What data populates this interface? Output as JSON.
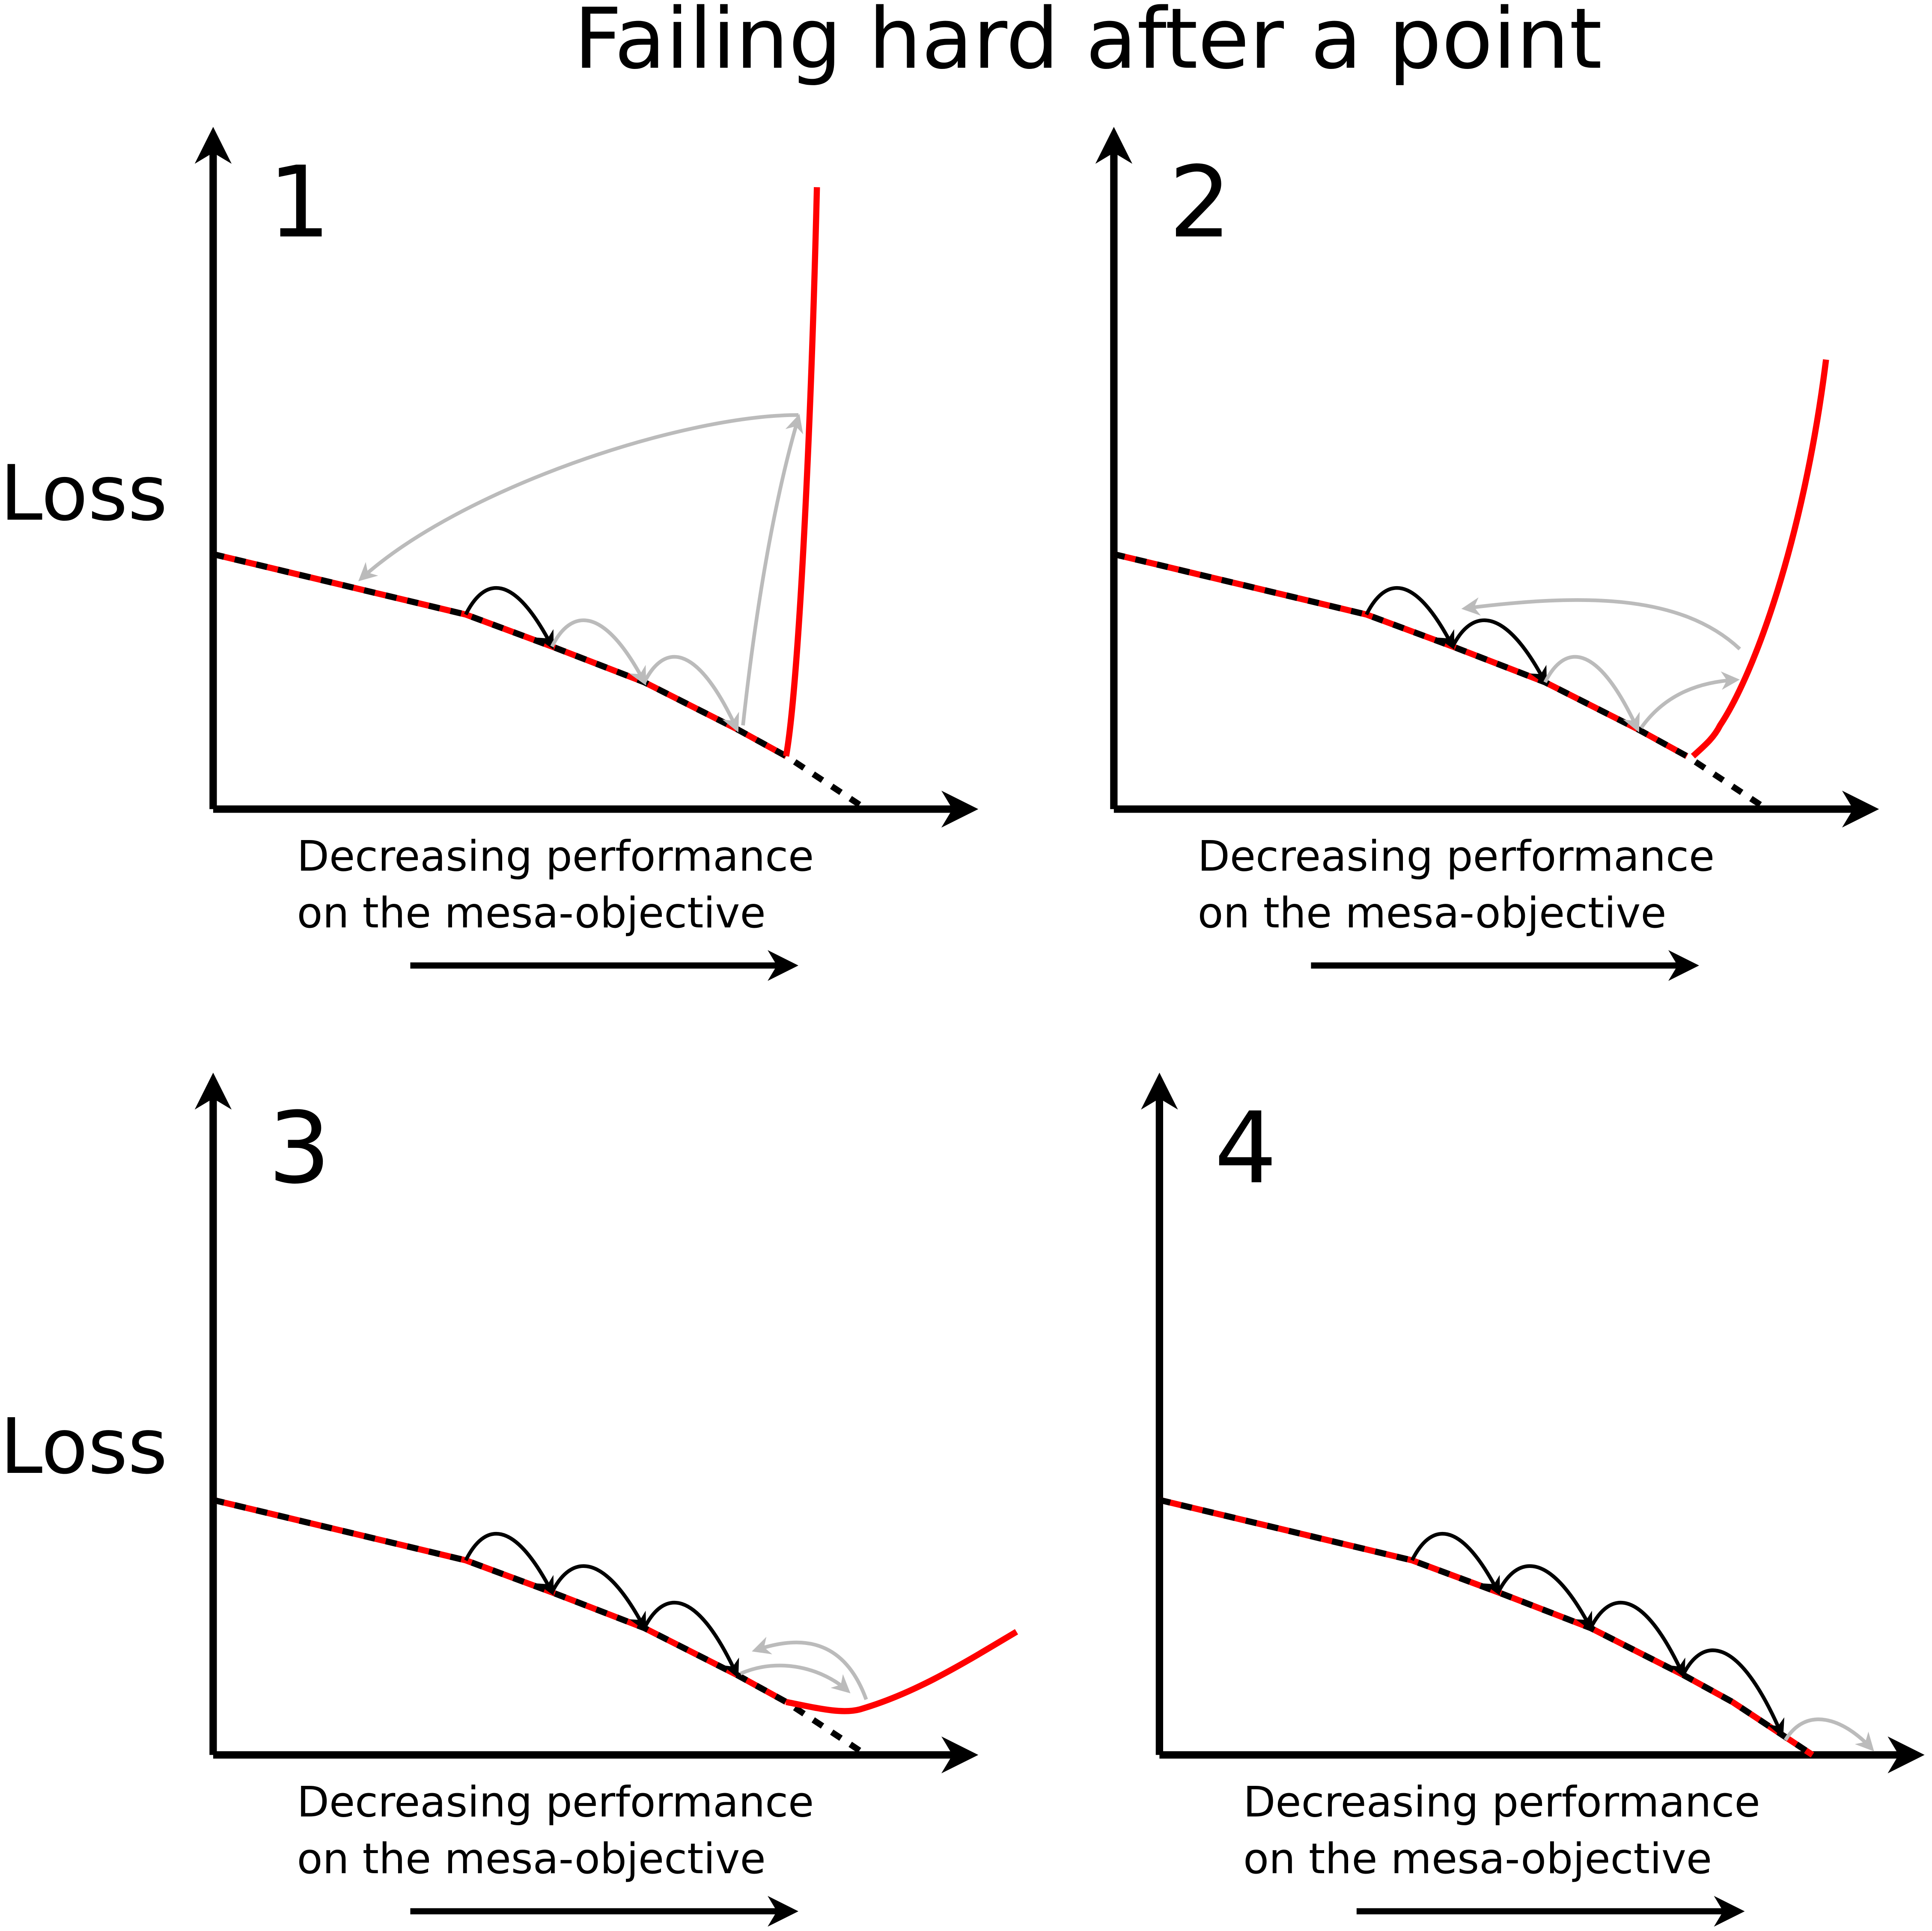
{
  "title": "Failing hard after a point",
  "y_labels": [
    "Loss",
    "Loss"
  ],
  "panels": [
    {
      "number": "1",
      "x_label": [
        "Decreasing performance",
        "on the mesa-objective"
      ]
    },
    {
      "number": "2",
      "x_label": [
        "Decreasing performance",
        "on the mesa-objective"
      ]
    },
    {
      "number": "3",
      "x_label": [
        "Decreasing performance",
        "on the mesa-objective"
      ]
    },
    {
      "number": "4",
      "x_label": [
        "Decreasing performance",
        "on the mesa-objective"
      ]
    }
  ]
}
